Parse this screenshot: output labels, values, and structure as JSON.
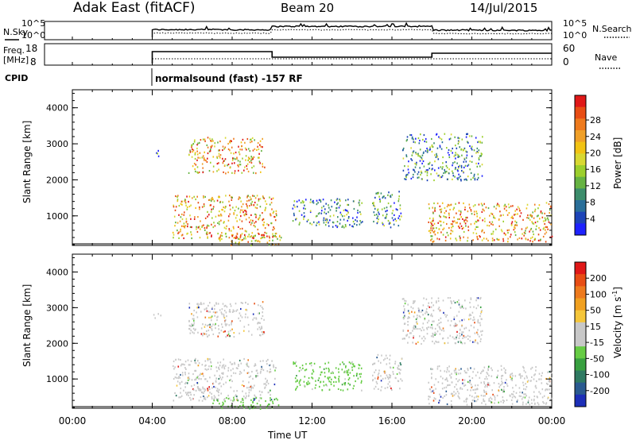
{
  "header": {
    "station": "Adak East (fitACF)",
    "beam": "Beam 20",
    "date": "14/Jul/2015"
  },
  "noise_panel": {
    "left_label": "N.Sky",
    "right_label": "N.Search",
    "left_ticks": [
      "10^5",
      "10^0"
    ],
    "right_ticks": [
      "10^5",
      "10^0"
    ]
  },
  "freq_panel": {
    "left_label_1": "Freq.",
    "left_label_2": "[MHz]",
    "right_label": "Nave",
    "left_ticks": [
      "18",
      "8"
    ],
    "right_ticks": [
      "60",
      "0"
    ]
  },
  "cpid": {
    "label": "CPID",
    "mode_text": "normalsound (fast) -157 RF"
  },
  "x_axis": {
    "label": "Time UT",
    "ticks": [
      "00:00",
      "04:00",
      "08:00",
      "12:00",
      "16:00",
      "20:00",
      "00:00"
    ]
  },
  "chart_data": [
    {
      "type": "heatmap",
      "quantity": "Power",
      "ylabel": "Slant Range [km]",
      "xlabel": "Time UT",
      "xlim_hours": [
        0,
        24
      ],
      "ylim_km": [
        180,
        4500
      ],
      "yticks": [
        1000,
        2000,
        3000,
        4000
      ],
      "colorbar": {
        "label": "Power [dB]",
        "ticks": [
          "4",
          "8",
          "12",
          "16",
          "20",
          "24",
          "28"
        ],
        "colors": [
          "#1e22ff",
          "#1d44b8",
          "#2a6f99",
          "#3c8d6c",
          "#66b342",
          "#9ccf2c",
          "#d8d832",
          "#f2c313",
          "#f0a028",
          "#ee7a1d",
          "#e84d14",
          "#e01818"
        ]
      },
      "echo_regions": [
        {
          "t_start": 4.0,
          "t_end": 4.4,
          "r_start": 2650,
          "r_end": 2850,
          "level": "weak"
        },
        {
          "t_start": 5.8,
          "t_end": 9.6,
          "r_start": 2200,
          "r_end": 3200,
          "level": "strong"
        },
        {
          "t_start": 5.0,
          "t_end": 10.2,
          "r_start": 400,
          "r_end": 1600,
          "level": "strong"
        },
        {
          "t_start": 7.0,
          "t_end": 10.5,
          "r_start": 180,
          "r_end": 500,
          "level": "strong"
        },
        {
          "t_start": 11.0,
          "t_end": 14.5,
          "r_start": 700,
          "r_end": 1500,
          "level": "weak"
        },
        {
          "t_start": 15.0,
          "t_end": 16.5,
          "r_start": 700,
          "r_end": 1700,
          "level": "weak"
        },
        {
          "t_start": 16.5,
          "t_end": 20.5,
          "r_start": 2000,
          "r_end": 3300,
          "level": "weak"
        },
        {
          "t_start": 17.8,
          "t_end": 24.0,
          "r_start": 300,
          "r_end": 1400,
          "level": "strong"
        }
      ]
    },
    {
      "type": "heatmap",
      "quantity": "Velocity",
      "ylabel": "Slant Range [km]",
      "xlabel": "Time UT",
      "xlim_hours": [
        0,
        24
      ],
      "ylim_km": [
        180,
        4500
      ],
      "yticks": [
        1000,
        2000,
        3000,
        4000
      ],
      "colorbar": {
        "label": "Velocity [m s",
        "label_sup": "-1",
        "label_end": "]",
        "ticks": [
          "200",
          "100",
          "50",
          "15",
          "-15",
          "-50",
          "-100",
          "-200"
        ],
        "colors": [
          "#1d2fb8",
          "#2a5a90",
          "#2f7a62",
          "#38a040",
          "#66cc44",
          "#c8c8c8",
          "#c8c8c8",
          "#f5c63a",
          "#f0a020",
          "#ee7a1d",
          "#e84d14",
          "#e01818"
        ]
      },
      "echo_regions": [
        {
          "t_start": 4.0,
          "t_end": 4.4,
          "r_start": 2650,
          "r_end": 2850,
          "level": "gray"
        },
        {
          "t_start": 5.8,
          "t_end": 9.6,
          "r_start": 2200,
          "r_end": 3200,
          "level": "gray"
        },
        {
          "t_start": 5.0,
          "t_end": 10.2,
          "r_start": 400,
          "r_end": 1600,
          "level": "gray"
        },
        {
          "t_start": 7.0,
          "t_end": 10.5,
          "r_start": 180,
          "r_end": 500,
          "level": "green"
        },
        {
          "t_start": 11.0,
          "t_end": 14.5,
          "r_start": 700,
          "r_end": 1500,
          "level": "green"
        },
        {
          "t_start": 15.0,
          "t_end": 16.5,
          "r_start": 700,
          "r_end": 1700,
          "level": "gray"
        },
        {
          "t_start": 16.5,
          "t_end": 20.5,
          "r_start": 2000,
          "r_end": 3300,
          "level": "gray"
        },
        {
          "t_start": 17.8,
          "t_end": 24.0,
          "r_start": 300,
          "r_end": 1400,
          "level": "gray"
        }
      ]
    }
  ]
}
